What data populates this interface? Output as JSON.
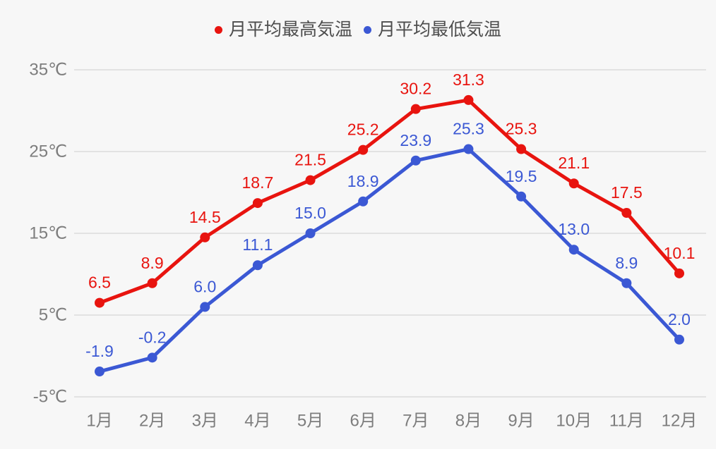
{
  "background_color": "#f7f7f7",
  "legend": {
    "position": "top-center",
    "items": [
      {
        "label": "月平均最高気温",
        "color": "#e8140f"
      },
      {
        "label": "月平均最低気温",
        "color": "#3b58d4"
      }
    ]
  },
  "chart_data": {
    "type": "line",
    "title": "",
    "xlabel": "",
    "ylabel": "",
    "categories": [
      "1月",
      "2月",
      "3月",
      "4月",
      "5月",
      "6月",
      "7月",
      "8月",
      "9月",
      "10月",
      "11月",
      "12月"
    ],
    "series": [
      {
        "name": "月平均最高気温",
        "color": "#e8140f",
        "values": [
          6.5,
          8.9,
          14.5,
          18.7,
          21.5,
          25.2,
          30.2,
          31.3,
          25.3,
          21.1,
          17.5,
          10.1
        ]
      },
      {
        "name": "月平均最低気温",
        "color": "#3b58d4",
        "values": [
          -1.9,
          -0.2,
          6.0,
          11.1,
          15.0,
          18.9,
          23.9,
          25.3,
          19.5,
          13.0,
          8.9,
          2.0
        ]
      }
    ],
    "y_axis": {
      "min": -5,
      "max": 35,
      "ticks": [
        35,
        25,
        15,
        5,
        -5
      ],
      "tick_labels": [
        "35℃",
        "25℃",
        "15℃",
        "5℃",
        "-5℃"
      ]
    },
    "grid": "horizontal-only",
    "legend_position": "top",
    "point_value_labels": true,
    "value_label_decimals": 1
  },
  "style_colors": {
    "axis_text": "#7d7d7d",
    "grid_line": "#e2e2e2",
    "legend_text": "#4d4d4d"
  }
}
